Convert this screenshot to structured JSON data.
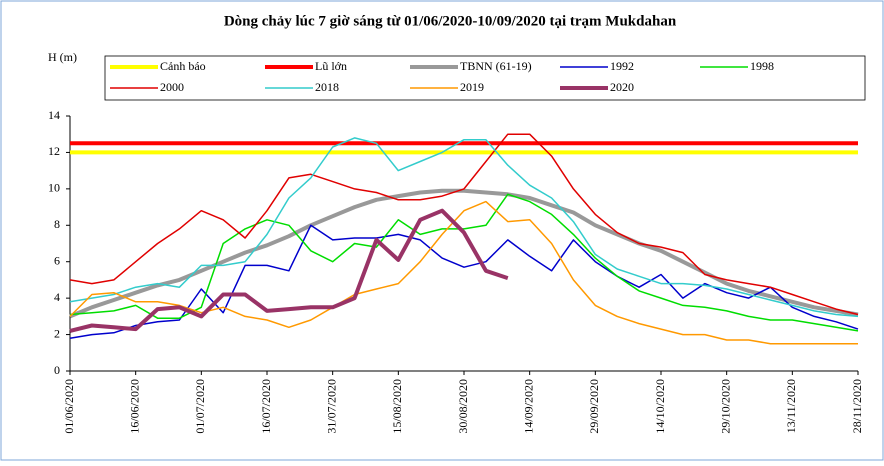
{
  "chart_data": {
    "type": "line",
    "title": "Dòng chảy lúc 7 giờ sáng từ 01/06/2020-10/09/2020 tại trạm Mukdahan",
    "y_label": "H (m)",
    "categories": [
      "01/06/2020",
      null,
      null,
      "16/06/2020",
      null,
      null,
      "01/07/2020",
      null,
      null,
      "16/07/2020",
      null,
      null,
      "31/07/2020",
      null,
      null,
      "15/08/2020",
      null,
      null,
      "30/08/2020",
      null,
      null,
      "14/09/2020",
      null,
      null,
      "29/09/2020",
      null,
      null,
      "14/10/2020",
      null,
      null,
      "29/10/2020",
      null,
      null,
      "13/11/2020",
      null,
      null,
      "28/11/2020"
    ],
    "ylim": [
      0,
      14
    ],
    "yticks": [
      0,
      2,
      4,
      6,
      8,
      10,
      12,
      14
    ],
    "series": [
      {
        "name": "Cảnh báo",
        "color": "#ffff00",
        "values": [
          12,
          12,
          12,
          12,
          12,
          12,
          12,
          12,
          12,
          12,
          12,
          12,
          12,
          12,
          12,
          12,
          12,
          12,
          12,
          12,
          12,
          12,
          12,
          12,
          12,
          12,
          12,
          12,
          12,
          12,
          12,
          12,
          12,
          12,
          12,
          12,
          12
        ]
      },
      {
        "name": "Lũ lớn",
        "color": "#ff0000",
        "values": [
          12.5,
          12.5,
          12.5,
          12.5,
          12.5,
          12.5,
          12.5,
          12.5,
          12.5,
          12.5,
          12.5,
          12.5,
          12.5,
          12.5,
          12.5,
          12.5,
          12.5,
          12.5,
          12.5,
          12.5,
          12.5,
          12.5,
          12.5,
          12.5,
          12.5,
          12.5,
          12.5,
          12.5,
          12.5,
          12.5,
          12.5,
          12.5,
          12.5,
          12.5,
          12.5,
          12.5,
          12.5
        ]
      },
      {
        "name": "TBNN (61-19)",
        "color": "#999999",
        "values": [
          3.0,
          3.5,
          3.9,
          4.3,
          4.7,
          5.0,
          5.5,
          6.0,
          6.5,
          6.9,
          7.4,
          8.0,
          8.5,
          9.0,
          9.4,
          9.6,
          9.8,
          9.9,
          9.9,
          9.8,
          9.7,
          9.5,
          9.1,
          8.7,
          8.0,
          7.5,
          7.0,
          6.6,
          6.0,
          5.4,
          4.8,
          4.4,
          4.1,
          3.8,
          3.5,
          3.3,
          3.1
        ]
      },
      {
        "name": "1992",
        "color": "#0000cc",
        "values": [
          1.8,
          2.0,
          2.1,
          2.5,
          2.7,
          2.8,
          4.5,
          3.2,
          5.8,
          5.8,
          5.5,
          8.0,
          7.2,
          7.3,
          7.3,
          7.5,
          7.2,
          6.2,
          5.7,
          6.0,
          7.2,
          6.3,
          5.5,
          7.2,
          6.0,
          5.2,
          4.6,
          5.3,
          4.0,
          4.8,
          4.3,
          4.0,
          4.6,
          3.5,
          3.0,
          2.7,
          2.3
        ]
      },
      {
        "name": "1998",
        "color": "#00dd00",
        "values": [
          3.1,
          3.2,
          3.3,
          3.6,
          2.9,
          2.9,
          3.5,
          7.0,
          7.8,
          8.3,
          8.0,
          6.6,
          6.0,
          7.0,
          6.8,
          8.3,
          7.5,
          7.8,
          7.8,
          8.0,
          9.7,
          9.3,
          8.6,
          7.5,
          6.2,
          5.2,
          4.4,
          4.0,
          3.6,
          3.5,
          3.3,
          3.0,
          2.8,
          2.8,
          2.6,
          2.4,
          2.2
        ]
      },
      {
        "name": "2000",
        "color": "#e00000",
        "values": [
          5.0,
          4.8,
          5.0,
          6.0,
          7.0,
          7.8,
          8.8,
          8.3,
          7.3,
          8.8,
          10.6,
          10.8,
          10.4,
          10.0,
          9.8,
          9.4,
          9.4,
          9.6,
          10.0,
          11.5,
          13.0,
          13.0,
          11.8,
          10.0,
          8.6,
          7.6,
          7.0,
          6.8,
          6.5,
          5.3,
          5.0,
          4.8,
          4.6,
          4.2,
          3.8,
          3.4,
          3.1
        ]
      },
      {
        "name": "2018",
        "color": "#33cccc",
        "values": [
          3.8,
          4.0,
          4.2,
          4.6,
          4.8,
          4.6,
          5.8,
          5.8,
          6.0,
          7.5,
          9.5,
          10.6,
          12.3,
          12.8,
          12.5,
          11.0,
          11.5,
          12.0,
          12.7,
          12.7,
          11.3,
          10.2,
          9.5,
          8.2,
          6.4,
          5.6,
          5.2,
          4.8,
          4.8,
          4.7,
          4.5,
          4.2,
          3.9,
          3.6,
          3.3,
          3.1,
          3.0
        ]
      },
      {
        "name": "2019",
        "color": "#ff9900",
        "values": [
          3.0,
          4.2,
          4.3,
          3.8,
          3.8,
          3.6,
          3.2,
          3.5,
          3.0,
          2.8,
          2.4,
          2.8,
          3.5,
          4.2,
          4.5,
          4.8,
          6.0,
          7.5,
          8.8,
          9.3,
          8.2,
          8.3,
          7.0,
          5.0,
          3.6,
          3.0,
          2.6,
          2.3,
          2.0,
          2.0,
          1.7,
          1.7,
          1.5,
          1.5,
          1.5,
          1.5,
          1.5
        ]
      },
      {
        "name": "2020",
        "color": "#993366",
        "values": [
          2.2,
          2.5,
          2.4,
          2.3,
          3.4,
          3.5,
          3.0,
          4.2,
          4.2,
          3.3,
          3.4,
          3.5,
          3.5,
          4.0,
          7.2,
          6.1,
          8.3,
          8.8,
          7.6,
          5.5,
          5.1,
          null,
          null,
          null,
          null,
          null,
          null,
          null,
          null,
          null,
          null,
          null,
          null,
          null,
          null,
          null,
          null
        ]
      }
    ]
  }
}
